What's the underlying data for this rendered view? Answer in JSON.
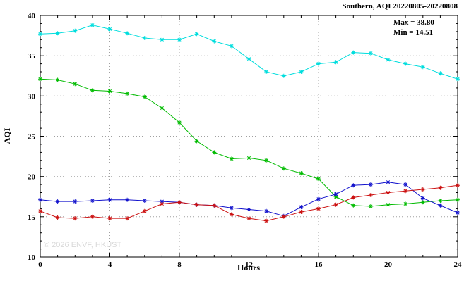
{
  "chart_data": {
    "type": "line",
    "title": "Southern, AQI 20220805-20220808",
    "xlabel": "Hours",
    "ylabel": "AQI",
    "max_label": "Max = 38.80",
    "min_label": "Min = 14.51",
    "watermark": "© 2026 ENVF, HKUST",
    "xlim": [
      0,
      24
    ],
    "ylim": [
      10,
      40
    ],
    "xticks": [
      0,
      4,
      8,
      12,
      16,
      20,
      24
    ],
    "yticks": [
      10,
      15,
      20,
      25,
      30,
      35,
      40
    ],
    "grid": true,
    "legend": "none",
    "marker": "asterisk",
    "x": [
      0,
      1,
      2,
      3,
      4,
      5,
      6,
      7,
      8,
      9,
      10,
      11,
      12,
      13,
      14,
      15,
      16,
      17,
      18,
      19,
      20,
      21,
      22,
      23,
      24
    ],
    "series": [
      {
        "name": "cyan",
        "color": "#00dddd",
        "values": [
          37.7,
          37.8,
          38.1,
          38.8,
          38.3,
          37.8,
          37.2,
          37.0,
          37.0,
          37.7,
          36.8,
          36.2,
          34.6,
          33.0,
          32.5,
          33.0,
          34.0,
          34.2,
          35.4,
          35.3,
          34.5,
          34.0,
          33.6,
          32.8,
          32.1
        ]
      },
      {
        "name": "green",
        "color": "#00bb00",
        "values": [
          32.1,
          32.0,
          31.5,
          30.7,
          30.6,
          30.3,
          29.9,
          28.5,
          26.7,
          24.4,
          23.0,
          22.2,
          22.3,
          22.0,
          21.0,
          20.4,
          19.7,
          17.5,
          16.4,
          16.3,
          16.5,
          16.6,
          16.8,
          17.0,
          17.1
        ]
      },
      {
        "name": "blue",
        "color": "#1111cc",
        "values": [
          17.1,
          16.9,
          16.9,
          17.0,
          17.1,
          17.1,
          17.0,
          16.9,
          16.8,
          16.5,
          16.4,
          16.1,
          15.9,
          15.7,
          15.1,
          16.2,
          17.2,
          17.8,
          18.9,
          19.0,
          19.3,
          19.0,
          17.3,
          16.4,
          15.5
        ]
      },
      {
        "name": "red",
        "color": "#cc1111",
        "values": [
          15.7,
          14.9,
          14.8,
          15.0,
          14.8,
          14.8,
          15.7,
          16.6,
          16.8,
          16.5,
          16.4,
          15.3,
          14.8,
          14.5,
          15.0,
          15.6,
          16.0,
          16.5,
          17.4,
          17.7,
          18.0,
          18.2,
          18.4,
          18.6,
          18.9
        ]
      }
    ]
  }
}
